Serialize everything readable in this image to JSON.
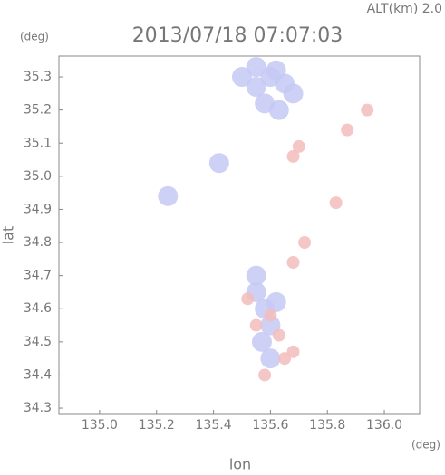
{
  "chart_data": {
    "type": "scatter",
    "title": "2013/07/18 07:07:03",
    "annotations": {
      "altitude": "ALT(km) 2.0",
      "y_unit": "(deg)",
      "x_unit": "(deg)"
    },
    "x_label": "lon",
    "y_label": "lat",
    "xlim": [
      134.857,
      136.124
    ],
    "ylim": [
      34.281,
      35.363
    ],
    "xticks": [
      {
        "value": 135.0,
        "label": "135.0"
      },
      135.2,
      135.4,
      135.6,
      135.8,
      {
        "value": 136.0,
        "label": "136.0"
      }
    ],
    "yticks": [
      34.3,
      34.4,
      34.5,
      34.6,
      34.7,
      34.8,
      34.9,
      {
        "value": 35.0,
        "label": "35.0"
      },
      35.1,
      35.2,
      35.3
    ],
    "series": [
      {
        "color": "#c5c9f4",
        "x": [
          135.55,
          135.6,
          135.65,
          135.58,
          135.63,
          135.68,
          135.5,
          135.55,
          135.62,
          135.42,
          135.24,
          135.55,
          135.58,
          135.6,
          135.57,
          135.62,
          135.55,
          135.6
        ],
        "y": [
          35.27,
          35.3,
          35.28,
          35.22,
          35.2,
          35.25,
          35.3,
          35.33,
          35.32,
          35.04,
          34.94,
          34.65,
          34.6,
          34.55,
          34.5,
          34.62,
          34.7,
          34.45
        ]
      },
      {
        "color": "#f3bcbc",
        "x": [
          135.94,
          135.87,
          135.7,
          135.68,
          135.83,
          135.72,
          135.68,
          135.52,
          135.6,
          135.63,
          135.65,
          135.58,
          135.68,
          135.55
        ],
        "y": [
          35.2,
          35.14,
          35.09,
          35.06,
          34.92,
          34.8,
          34.74,
          34.63,
          34.58,
          34.52,
          34.45,
          34.4,
          34.47,
          34.55
        ]
      }
    ]
  }
}
